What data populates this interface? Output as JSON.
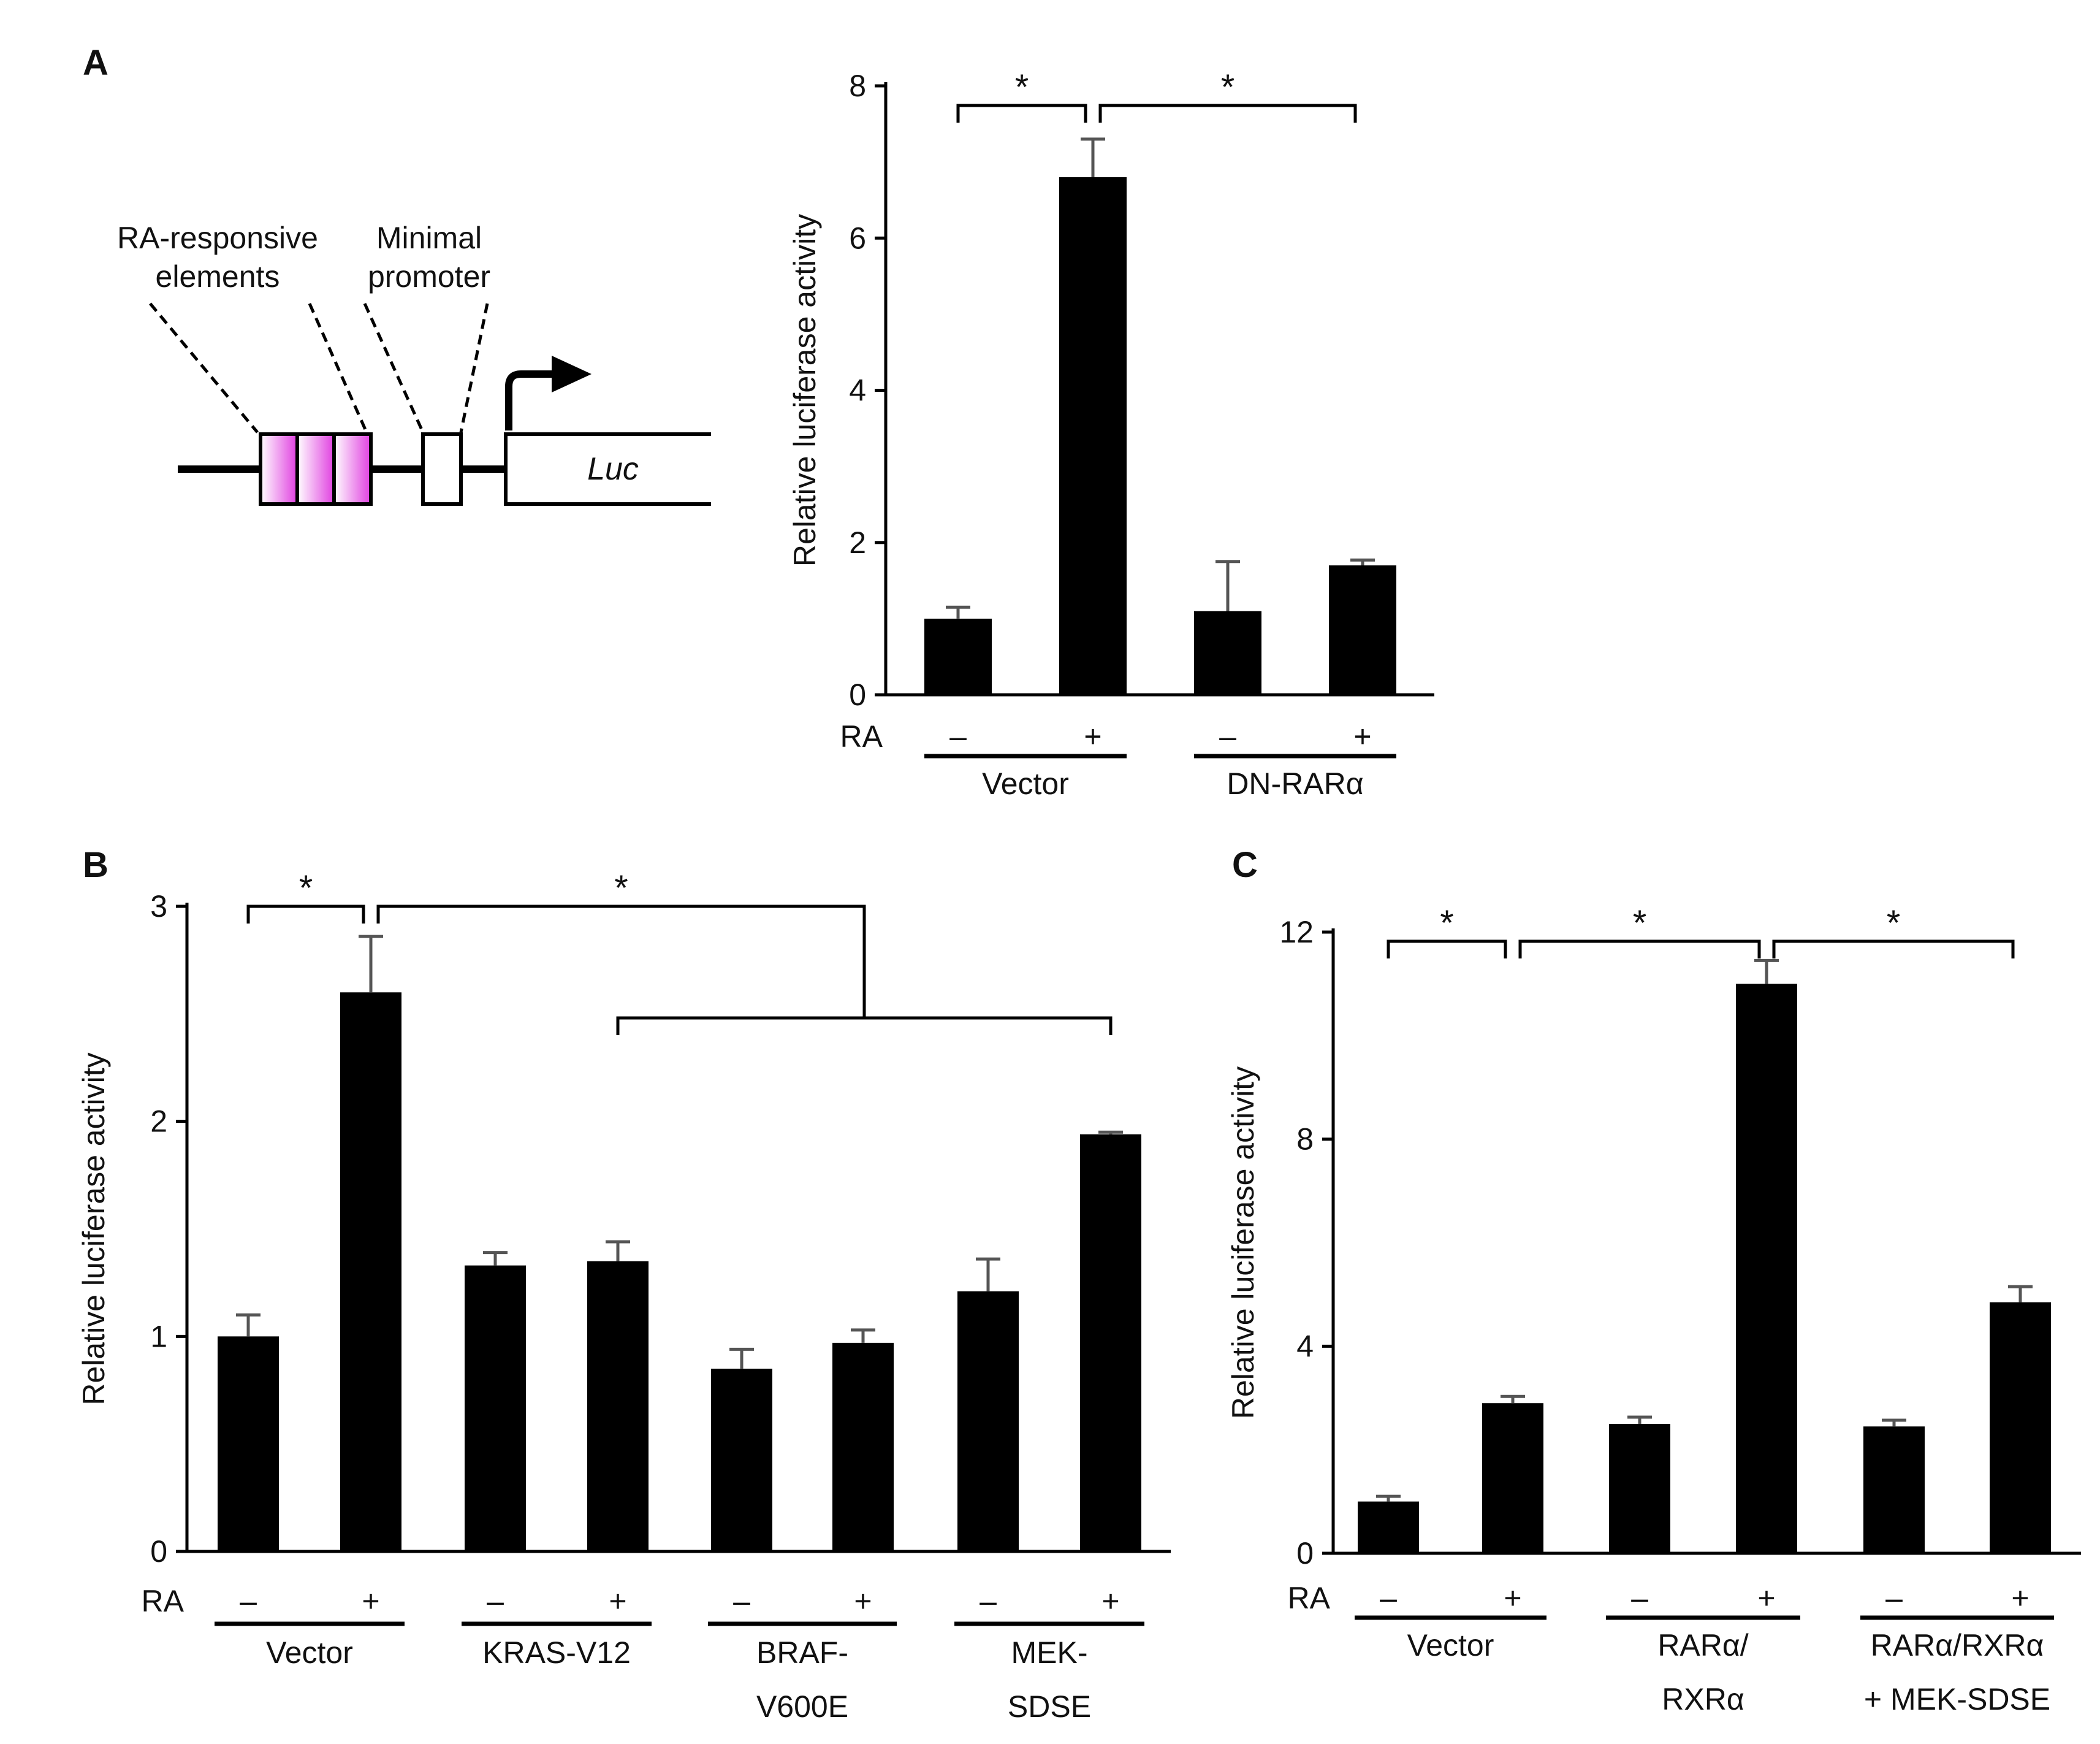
{
  "panel_labels": {
    "a": "A",
    "b": "B",
    "c": "C"
  },
  "schematic": {
    "label_elements_1": "RA-responsive",
    "label_elements_2": "elements",
    "label_promoter_1": "Minimal",
    "label_promoter_2": "promoter",
    "luc_label": "Luc",
    "element_color": "#e040e0"
  },
  "colors": {
    "bar": "#000000",
    "error_bar": "#555555",
    "axis": "#000000"
  },
  "chart_data": [
    {
      "id": "A",
      "type": "bar",
      "ylabel": "Relative luciferase activity",
      "ylim": [
        0,
        8
      ],
      "yticks": [
        0,
        2,
        4,
        6,
        8
      ],
      "treatment_label": "RA",
      "treatments": [
        "–",
        "+",
        "–",
        "+"
      ],
      "values": [
        1.0,
        6.8,
        1.1,
        1.7
      ],
      "errors": [
        0.15,
        0.5,
        0.65,
        0.07
      ],
      "groups": [
        {
          "lines": [
            "Vector"
          ],
          "bars": [
            0,
            1
          ]
        },
        {
          "lines": [
            "DN-RARα"
          ],
          "bars": [
            2,
            3
          ]
        }
      ],
      "significance": [
        {
          "label": "*",
          "from": 0,
          "to": 1
        },
        {
          "label": "*",
          "from": 1,
          "to": 3
        }
      ]
    },
    {
      "id": "B",
      "type": "bar",
      "ylabel": "Relative luciferase activity",
      "ylim": [
        0,
        3
      ],
      "yticks": [
        0,
        1,
        2,
        3
      ],
      "treatment_label": "RA",
      "treatments": [
        "–",
        "+",
        "–",
        "+",
        "–",
        "+",
        "–",
        "+"
      ],
      "values": [
        1.0,
        2.6,
        1.33,
        1.35,
        0.85,
        0.97,
        1.21,
        1.94
      ],
      "errors": [
        0.1,
        0.26,
        0.06,
        0.09,
        0.09,
        0.06,
        0.15,
        0.01
      ],
      "groups": [
        {
          "lines": [
            "Vector"
          ],
          "bars": [
            0,
            1
          ]
        },
        {
          "lines": [
            "KRAS-V12"
          ],
          "bars": [
            2,
            3
          ]
        },
        {
          "lines": [
            "BRAF-",
            "V600E"
          ],
          "bars": [
            4,
            5
          ]
        },
        {
          "lines": [
            "MEK-",
            "SDSE"
          ],
          "bars": [
            6,
            7
          ]
        }
      ],
      "significance": [
        {
          "label": "*",
          "from": 0,
          "to": 1
        },
        {
          "label": "*",
          "from": 1,
          "to_bracket": [
            3,
            7
          ]
        }
      ]
    },
    {
      "id": "C",
      "type": "bar",
      "ylabel": "Relative luciferase activity",
      "ylim": [
        0,
        12
      ],
      "yticks": [
        0,
        4,
        8,
        12
      ],
      "treatment_label": "RA",
      "treatments": [
        "–",
        "+",
        "–",
        "+",
        "–",
        "+"
      ],
      "values": [
        1.0,
        2.9,
        2.5,
        11.0,
        2.45,
        4.85
      ],
      "errors": [
        0.1,
        0.13,
        0.13,
        0.45,
        0.12,
        0.3
      ],
      "groups": [
        {
          "lines": [
            "Vector"
          ],
          "bars": [
            0,
            1
          ]
        },
        {
          "lines": [
            "RARα/",
            "RXRα"
          ],
          "bars": [
            2,
            3
          ]
        },
        {
          "lines": [
            "RARα/RXRα",
            "+ MEK-SDSE"
          ],
          "bars": [
            4,
            5
          ]
        }
      ],
      "significance": [
        {
          "label": "*",
          "from": 0,
          "to": 1
        },
        {
          "label": "*",
          "from": 1,
          "to": 3
        },
        {
          "label": "*",
          "from": 3,
          "to": 5
        }
      ]
    }
  ]
}
